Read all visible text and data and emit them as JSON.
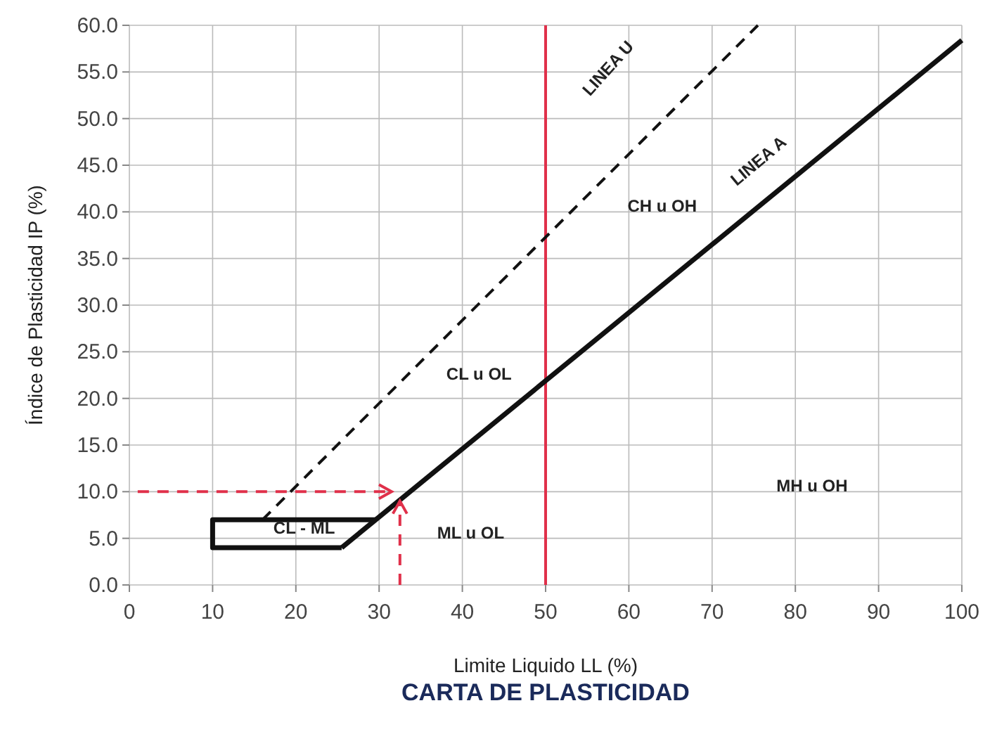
{
  "chart_data": {
    "type": "line",
    "title": "CARTA DE PLASTICIDAD",
    "xlabel": "Limite Liquido LL (%)",
    "ylabel": "Índice de Plasticidad IP (%)",
    "xlim": [
      0,
      100
    ],
    "xticks": [
      0,
      10,
      20,
      30,
      40,
      50,
      60,
      70,
      80,
      90,
      100
    ],
    "ylim": [
      0,
      60
    ],
    "yticks": [
      {
        "value": 0,
        "label": "0.0"
      },
      {
        "value": 5,
        "label": "5.0"
      },
      {
        "value": 10,
        "label": "10.0"
      },
      {
        "value": 15,
        "label": "15.0"
      },
      {
        "value": 20,
        "label": "20.0"
      },
      {
        "value": 25,
        "label": "25.0"
      },
      {
        "value": 30,
        "label": "30.0"
      },
      {
        "value": 35,
        "label": "35.0"
      },
      {
        "value": 40,
        "label": "40.0"
      },
      {
        "value": 45,
        "label": "45.0"
      },
      {
        "value": 50,
        "label": "50.0"
      },
      {
        "value": 55,
        "label": "55.0"
      },
      {
        "value": 60,
        "label": "60.0"
      }
    ],
    "grid": true,
    "marker": "none",
    "series": [
      {
        "color": "#111111",
        "x": [
          25.5,
          100
        ],
        "values": [
          4,
          58.4
        ],
        "line_style": "solid"
      },
      {
        "color": "#111111",
        "x": [
          29.6,
          10,
          10,
          25.5
        ],
        "values": [
          7,
          7,
          4,
          4
        ],
        "line_style": "solid"
      },
      {
        "color": "#111111",
        "x": [
          16,
          75.5
        ],
        "values": [
          7,
          60
        ],
        "line_style": "dashed"
      }
    ],
    "ref_lines": [
      {
        "axis": "x",
        "value": 50,
        "color": "#e0304a",
        "line_style": "solid"
      }
    ],
    "annotations": [
      "LINEA U",
      "LINEA A",
      "CH u OH",
      "CL u OL",
      "CL - ML",
      "ML u OL",
      "MH u OH"
    ]
  }
}
